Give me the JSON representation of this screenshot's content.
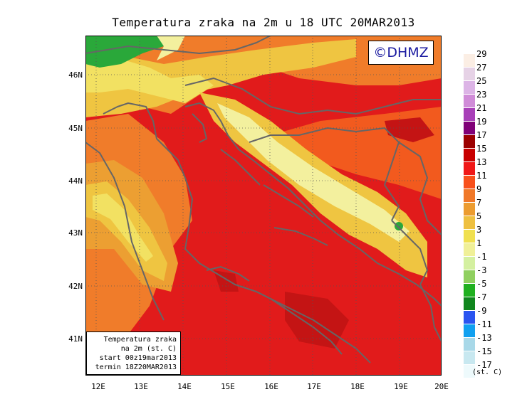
{
  "title": "Temperatura zraka na 2m u 18 UTC 20MAR2013",
  "copyright": "©DHMZ",
  "info_box": {
    "line1": "Temperatura zraka",
    "line2": "na 2m (st. C)",
    "line3": "start 00z19mar2013",
    "line4": "termin 18Z20MAR2013"
  },
  "lat_labels": [
    "46N",
    "45N",
    "44N",
    "43N",
    "42N",
    "41N"
  ],
  "lon_labels": [
    "12E",
    "13E",
    "14E",
    "15E",
    "16E",
    "17E",
    "18E",
    "19E",
    "20E"
  ],
  "legend": {
    "unit": "(st. C)",
    "labels": [
      "29",
      "27",
      "25",
      "23",
      "21",
      "19",
      "17",
      "15",
      "13",
      "11",
      "9",
      "7",
      "5",
      "3",
      "1",
      "-1",
      "-3",
      "-5",
      "-7",
      "-9",
      "-11",
      "-13",
      "-15",
      "-17"
    ],
    "colors": [
      "#fbeee4",
      "#e6d2e6",
      "#dcb4e6",
      "#d08cd8",
      "#a840b8",
      "#800078",
      "#9c0000",
      "#c80000",
      "#f01818",
      "#f8501c",
      "#f07828",
      "#ec9c30",
      "#eec040",
      "#f0e050",
      "#f0f098",
      "#d4f0a0",
      "#90d060",
      "#20b020",
      "#10861e",
      "#2a54f0",
      "#10a0f0",
      "#a8d8e8",
      "#c8e8f0",
      "#eefafc"
    ]
  },
  "map_colors": {
    "sea": "#e11b1b",
    "warm": "#f25a1e",
    "orange": "#f07c2a",
    "amber": "#ec9f32",
    "yellow": "#efc541",
    "lightyellow": "#f2e162",
    "cream": "#f3f09e",
    "green": "#2aa83a",
    "darkred": "#c41414",
    "border": "#666666",
    "gridline": "#555555"
  }
}
